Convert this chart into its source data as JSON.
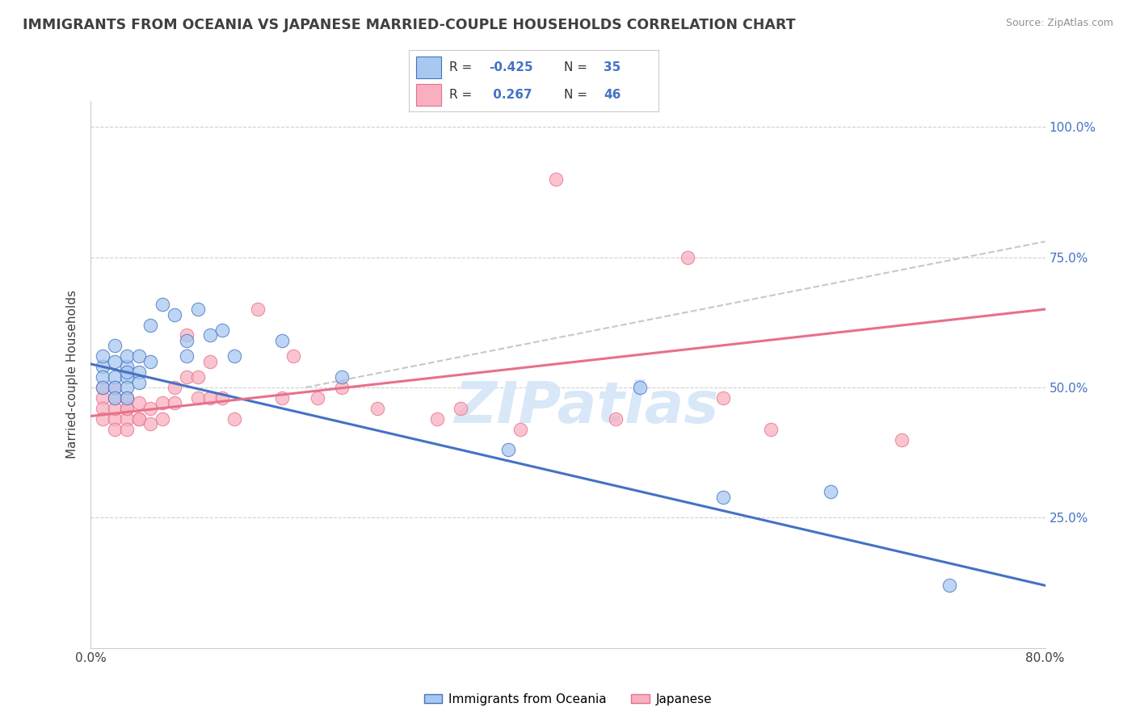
{
  "title": "IMMIGRANTS FROM OCEANIA VS JAPANESE MARRIED-COUPLE HOUSEHOLDS CORRELATION CHART",
  "source": "Source: ZipAtlas.com",
  "ylabel": "Married-couple Households",
  "ytick_labels": [
    "25.0%",
    "50.0%",
    "75.0%",
    "100.0%"
  ],
  "ytick_values": [
    0.25,
    0.5,
    0.75,
    1.0
  ],
  "xtick_labels": [
    "0.0%",
    "80.0%"
  ],
  "xlim": [
    0.0,
    0.8
  ],
  "ylim": [
    0.0,
    1.05
  ],
  "color_blue": "#A8C8F0",
  "color_pink": "#F8B0C0",
  "line_blue": "#4472C4",
  "line_pink": "#E8708A",
  "line_gray_dash": "#C8C8C8",
  "bg_color": "#FFFFFF",
  "grid_color": "#D0D0D0",
  "title_color": "#404040",
  "source_color": "#909090",
  "watermark_text": "ZIPatlas",
  "watermark_color": "#D8E8F8",
  "legend_r1": "-0.425",
  "legend_n1": "35",
  "legend_r2": "0.267",
  "legend_n2": "46",
  "blue_x": [
    0.01,
    0.01,
    0.01,
    0.01,
    0.02,
    0.02,
    0.02,
    0.02,
    0.02,
    0.03,
    0.03,
    0.03,
    0.03,
    0.03,
    0.03,
    0.04,
    0.04,
    0.04,
    0.05,
    0.05,
    0.06,
    0.07,
    0.08,
    0.08,
    0.09,
    0.1,
    0.11,
    0.12,
    0.16,
    0.21,
    0.35,
    0.46,
    0.53,
    0.62,
    0.72
  ],
  "blue_y": [
    0.54,
    0.56,
    0.52,
    0.5,
    0.55,
    0.52,
    0.5,
    0.48,
    0.58,
    0.54,
    0.56,
    0.52,
    0.5,
    0.53,
    0.48,
    0.53,
    0.56,
    0.51,
    0.55,
    0.62,
    0.66,
    0.64,
    0.56,
    0.59,
    0.65,
    0.6,
    0.61,
    0.56,
    0.59,
    0.52,
    0.38,
    0.5,
    0.29,
    0.3,
    0.12
  ],
  "pink_x": [
    0.01,
    0.01,
    0.01,
    0.01,
    0.02,
    0.02,
    0.02,
    0.02,
    0.02,
    0.03,
    0.03,
    0.03,
    0.03,
    0.03,
    0.04,
    0.04,
    0.04,
    0.05,
    0.05,
    0.06,
    0.06,
    0.07,
    0.07,
    0.08,
    0.08,
    0.09,
    0.09,
    0.1,
    0.1,
    0.11,
    0.12,
    0.14,
    0.16,
    0.17,
    0.19,
    0.21,
    0.24,
    0.29,
    0.31,
    0.36,
    0.39,
    0.44,
    0.5,
    0.53,
    0.57,
    0.68
  ],
  "pink_y": [
    0.48,
    0.5,
    0.46,
    0.44,
    0.48,
    0.44,
    0.46,
    0.42,
    0.5,
    0.46,
    0.44,
    0.42,
    0.48,
    0.46,
    0.44,
    0.47,
    0.44,
    0.46,
    0.43,
    0.47,
    0.44,
    0.5,
    0.47,
    0.6,
    0.52,
    0.52,
    0.48,
    0.55,
    0.48,
    0.48,
    0.44,
    0.65,
    0.48,
    0.56,
    0.48,
    0.5,
    0.46,
    0.44,
    0.46,
    0.42,
    0.9,
    0.44,
    0.75,
    0.48,
    0.42,
    0.4
  ],
  "blue_line_x0": 0.0,
  "blue_line_y0": 0.545,
  "blue_line_x1": 0.8,
  "blue_line_y1": 0.12,
  "pink_line_x0": 0.0,
  "pink_line_y0": 0.445,
  "pink_line_x1": 0.8,
  "pink_line_y1": 0.65,
  "gray_line_x0": 0.18,
  "gray_line_y0": 0.5,
  "gray_line_x1": 0.8,
  "gray_line_y1": 0.78
}
